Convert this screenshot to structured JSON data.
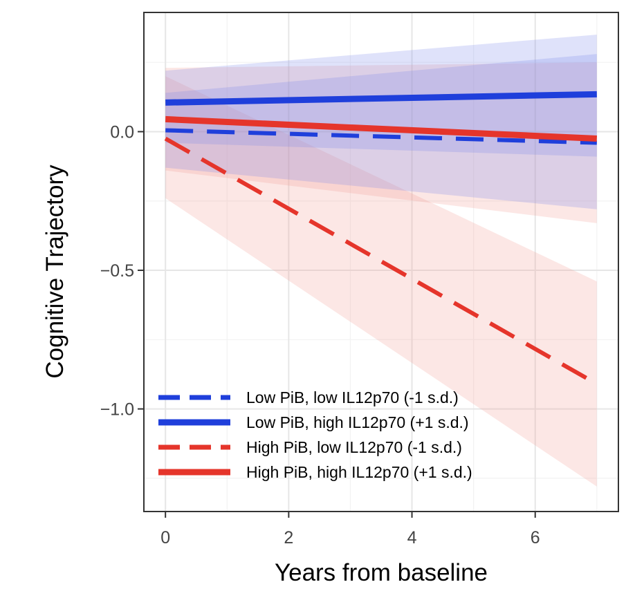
{
  "chart_data": {
    "type": "line",
    "xlabel": "Years from baseline",
    "ylabel": "Cognitive Trajectory",
    "xlim": [
      -0.35,
      7.35
    ],
    "ylim": [
      -1.37,
      0.43
    ],
    "x_ticks": [
      0,
      2,
      4,
      6
    ],
    "x_tick_labels": [
      "0",
      "2",
      "4",
      "6"
    ],
    "y_ticks": [
      -1.0,
      -0.5,
      0.0
    ],
    "y_tick_labels": [
      "−1.0",
      "−0.5",
      "0.0"
    ],
    "grid": true,
    "legend_position": "bottom-left",
    "x": [
      0,
      7
    ],
    "series": [
      {
        "name": "Low PiB, low IL12p70 (-1 s.d.)",
        "color": "#1f3fdb",
        "dash": "dashed",
        "values": [
          0.005,
          -0.04
        ],
        "ci_lower": [
          -0.13,
          -0.28
        ],
        "ci_upper": [
          0.14,
          0.28
        ],
        "band_color": "#7b86ea"
      },
      {
        "name": "Low PiB, high IL12p70 (+1 s.d.)",
        "color": "#1f3fdb",
        "dash": "solid",
        "values": [
          0.105,
          0.135
        ],
        "ci_lower": [
          -0.04,
          -0.09
        ],
        "ci_upper": [
          0.22,
          0.35
        ],
        "band_color": "#7b86ea"
      },
      {
        "name": "High PiB, low IL12p70 (-1 s.d.)",
        "color": "#e5352b",
        "dash": "dashed",
        "values": [
          -0.025,
          -0.91
        ],
        "ci_lower": [
          -0.24,
          -1.28
        ],
        "ci_upper": [
          0.2,
          -0.54
        ],
        "band_color": "#f19a94"
      },
      {
        "name": "High PiB, high IL12p70 (+1 s.d.)",
        "color": "#e5352b",
        "dash": "solid",
        "values": [
          0.045,
          -0.025
        ],
        "ci_lower": [
          -0.14,
          -0.33
        ],
        "ci_upper": [
          0.23,
          0.25
        ],
        "band_color": "#f19a94"
      }
    ]
  }
}
